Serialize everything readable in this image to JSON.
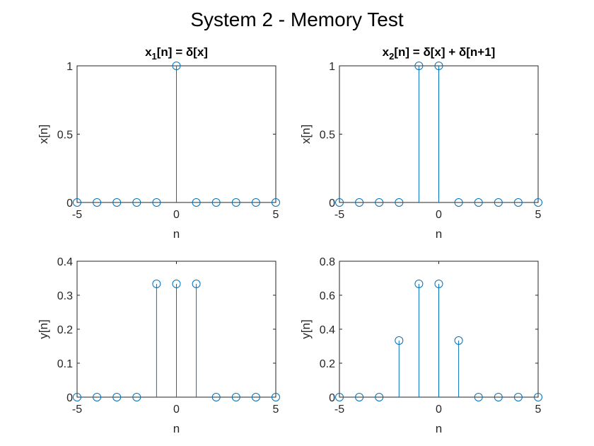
{
  "figure": {
    "title": "System 2 - Memory Test"
  },
  "colors": {
    "stem": "#0072BD",
    "axes": "#262626"
  },
  "chart_data": [
    {
      "type": "stem",
      "title": "x",
      "title_sub": "1",
      "title_rest": "[n] = δ[x]",
      "xlabel": "n",
      "ylabel": "x[n]",
      "xlim": [
        -5,
        5
      ],
      "ylim": [
        0,
        1
      ],
      "xticks": [
        -5,
        0,
        5
      ],
      "yticks": [
        0,
        0.5,
        1
      ],
      "ytick_labels": [
        "0",
        "0.5",
        "1"
      ],
      "x": [
        -5,
        -4,
        -3,
        -2,
        -1,
        0,
        1,
        2,
        3,
        4,
        5
      ],
      "y": [
        0,
        0,
        0,
        0,
        0,
        1,
        0,
        0,
        0,
        0,
        0
      ]
    },
    {
      "type": "stem",
      "title": "x",
      "title_sub": "2",
      "title_rest": "[n] = δ[x] + δ[n+1]",
      "xlabel": "n",
      "ylabel": "x[n]",
      "xlim": [
        -5,
        5
      ],
      "ylim": [
        0,
        1
      ],
      "xticks": [
        -5,
        0,
        5
      ],
      "yticks": [
        0,
        0.5,
        1
      ],
      "ytick_labels": [
        "0",
        "0.5",
        "1"
      ],
      "x": [
        -5,
        -4,
        -3,
        -2,
        -1,
        0,
        1,
        2,
        3,
        4,
        5
      ],
      "y": [
        0,
        0,
        0,
        0,
        1,
        1,
        0,
        0,
        0,
        0,
        0
      ]
    },
    {
      "type": "stem",
      "xlabel": "n",
      "ylabel": "y[n]",
      "xlim": [
        -5,
        5
      ],
      "ylim": [
        0,
        0.4
      ],
      "xticks": [
        -5,
        0,
        5
      ],
      "yticks": [
        0,
        0.1,
        0.2,
        0.3,
        0.4
      ],
      "ytick_labels": [
        "0",
        "0.1",
        "0.2",
        "0.3",
        "0.4"
      ],
      "x": [
        -5,
        -4,
        -3,
        -2,
        -1,
        0,
        1,
        2,
        3,
        4,
        5
      ],
      "y": [
        0,
        0,
        0,
        0,
        0.3333,
        0.3333,
        0.3333,
        0,
        0,
        0,
        0
      ]
    },
    {
      "type": "stem",
      "xlabel": "n",
      "ylabel": "y[n]",
      "xlim": [
        -5,
        5
      ],
      "ylim": [
        0,
        0.8
      ],
      "xticks": [
        -5,
        0,
        5
      ],
      "yticks": [
        0,
        0.2,
        0.4,
        0.6,
        0.8
      ],
      "ytick_labels": [
        "0",
        "0.2",
        "0.4",
        "0.6",
        "0.8"
      ],
      "x": [
        -5,
        -4,
        -3,
        -2,
        -1,
        0,
        1,
        2,
        3,
        4,
        5
      ],
      "y": [
        0,
        0,
        0,
        0.3333,
        0.6667,
        0.6667,
        0.3333,
        0,
        0,
        0,
        0
      ]
    }
  ]
}
